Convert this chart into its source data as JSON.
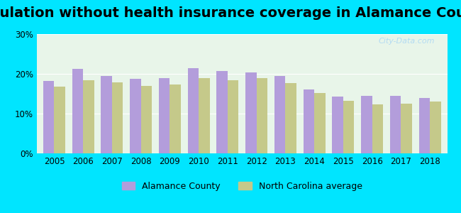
{
  "title": "Population without health insurance coverage in Alamance County",
  "years": [
    2005,
    2006,
    2007,
    2008,
    2009,
    2010,
    2011,
    2012,
    2013,
    2014,
    2015,
    2016,
    2017,
    2018
  ],
  "alamance": [
    18.3,
    21.2,
    19.5,
    18.7,
    19.0,
    21.5,
    20.7,
    20.3,
    19.5,
    16.0,
    14.3,
    14.4,
    14.5,
    14.0
  ],
  "nc_avg": [
    16.7,
    18.4,
    17.8,
    16.9,
    17.4,
    18.9,
    18.4,
    18.9,
    17.7,
    15.2,
    13.3,
    12.3,
    12.5,
    13.1
  ],
  "alamance_color": "#b39ddb",
  "nc_color": "#c5c98a",
  "bg_color": "#00e5ff",
  "plot_bg_top": "#e8f5e9",
  "plot_bg_bottom": "#e0f7e0",
  "ylim": [
    0,
    30
  ],
  "yticks": [
    0,
    10,
    20,
    30
  ],
  "ytick_labels": [
    "0%",
    "10%",
    "20%",
    "30%"
  ],
  "title_fontsize": 14,
  "legend_label_alamance": "Alamance County",
  "legend_label_nc": "North Carolina average",
  "watermark": "City-Data.com"
}
